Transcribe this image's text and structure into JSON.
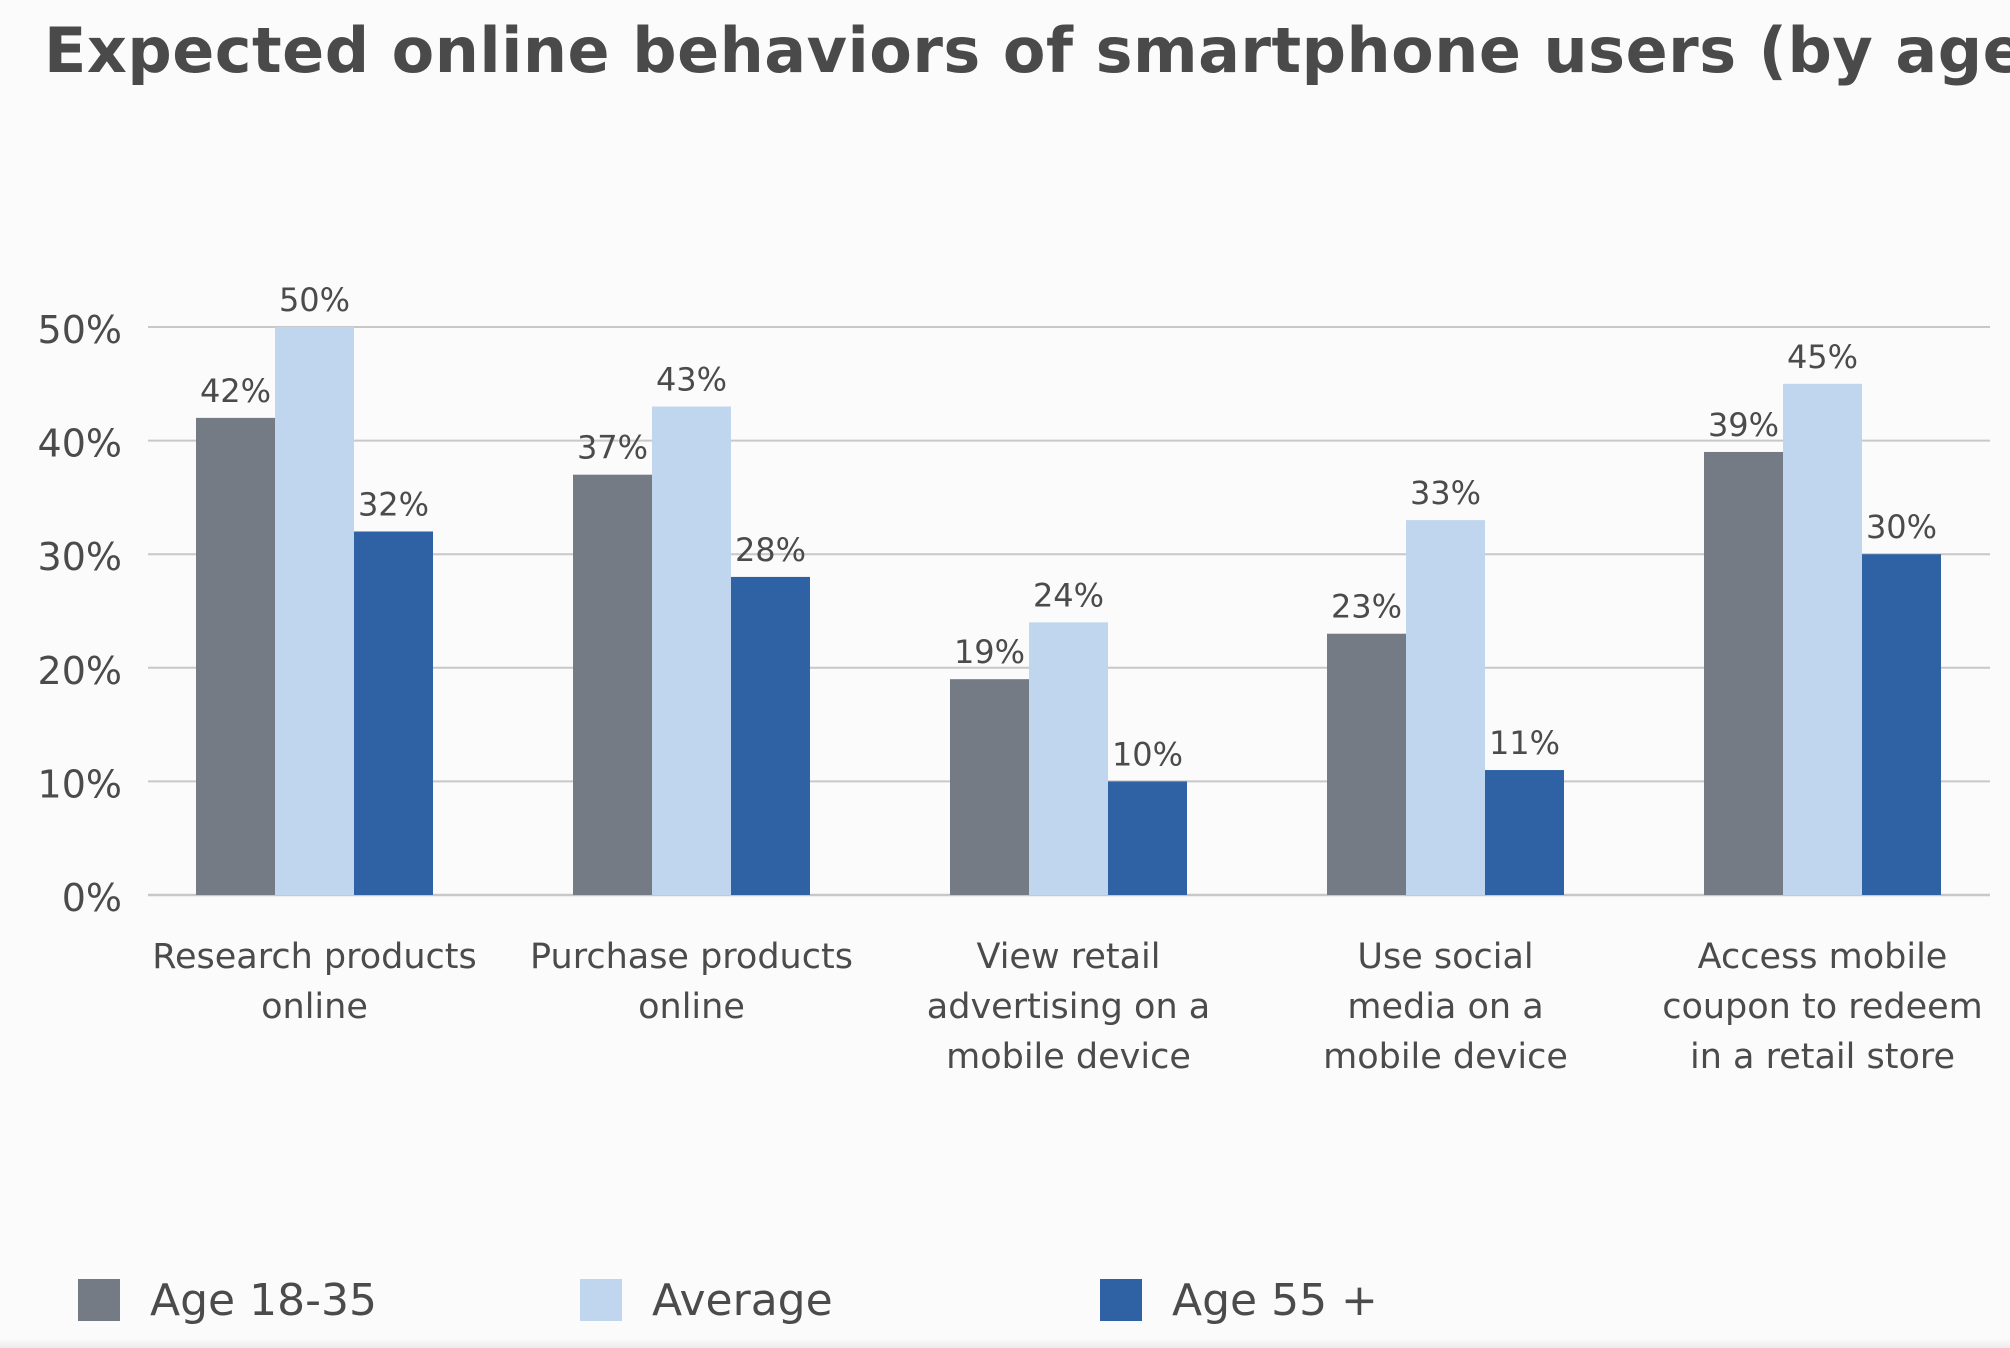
{
  "title": "Expected online behaviors of smartphone users (by age)",
  "colors": {
    "age_18_35": "#747b84",
    "average": "#c0d6ee",
    "age_55_plus": "#2f62a4",
    "grid": "#c8c8c8",
    "text": "#4b4b4b"
  },
  "chart_data": {
    "type": "bar",
    "title": "Expected online behaviors of smartphone users (by age)",
    "xlabel": "",
    "ylabel": "",
    "ylim": [
      0,
      50
    ],
    "yticks": [
      0,
      10,
      20,
      30,
      40,
      50
    ],
    "ytick_labels": [
      "0%",
      "10%",
      "20%",
      "30%",
      "40%",
      "50%"
    ],
    "grid": true,
    "legend_position": "bottom",
    "categories": [
      [
        "Research products",
        "online"
      ],
      [
        "Purchase products",
        "online"
      ],
      [
        "View retail",
        "advertising on a",
        "mobile device"
      ],
      [
        "Use social",
        "media on a",
        "mobile device"
      ],
      [
        "Access mobile",
        "coupon to redeem",
        "in a retail store"
      ]
    ],
    "series": [
      {
        "name": "Age 18-35",
        "color": "#747b84",
        "values": [
          42,
          37,
          19,
          23,
          39
        ],
        "labels": [
          "42%",
          "37%",
          "19%",
          "23%",
          "39%"
        ]
      },
      {
        "name": "Average",
        "color": "#c0d6ee",
        "values": [
          50,
          43,
          24,
          33,
          45
        ],
        "labels": [
          "50%",
          "43%",
          "24%",
          "33%",
          "45%"
        ]
      },
      {
        "name": "Age 55 +",
        "color": "#2f62a4",
        "values": [
          32,
          28,
          10,
          11,
          30
        ],
        "labels": [
          "32%",
          "28%",
          "10%",
          "11%",
          "30%"
        ]
      }
    ]
  },
  "legend": {
    "items": [
      {
        "label": "Age 18-35",
        "color": "#747b84"
      },
      {
        "label": "Average",
        "color": "#c0d6ee"
      },
      {
        "label": "Age 55 +",
        "color": "#2f62a4"
      }
    ]
  }
}
